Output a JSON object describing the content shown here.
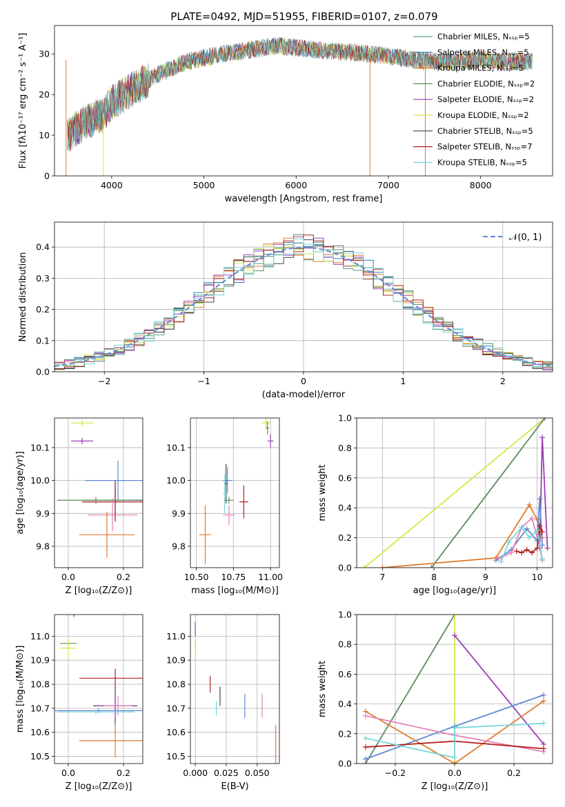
{
  "figure_title": "PLATE=0492, MJD=51955, FIBERID=0107, z=0.079",
  "colors": {
    "Chabrier MILES": "#5aa08a",
    "Salpeter MILES": "#2a7fa8",
    "Kroupa MILES": "#e07a2c",
    "Chabrier ELODIE": "#5c8a5c",
    "Salpeter ELODIE": "#9a3cb4",
    "Kroupa ELODIE": "#d6e64a",
    "Chabrier STELIB": "#444444",
    "Salpeter STELIB": "#b01f1f",
    "Kroupa STELIB": "#76d6da",
    "blue": "#5e87d6",
    "pink": "#e680b8",
    "normal_curve": "#6a8fd6"
  },
  "chart_data": [
    {
      "id": "spectrum",
      "type": "line",
      "xlabel": "wavelength [Angstrom, rest frame]",
      "ylabel": "Flux [fλ10⁻¹⁷ erg cm⁻² s⁻¹ A⁻¹]",
      "xlim": [
        3380,
        8780
      ],
      "ylim": [
        0,
        37
      ],
      "xticks": [
        4000,
        5000,
        6000,
        7000,
        8000
      ],
      "yticks": [
        0,
        10,
        20,
        30
      ],
      "legend_position": "right",
      "series": [
        {
          "name": "Chabrier MILES, Nₛₛₚ=5",
          "color": "#5aa08a"
        },
        {
          "name": "Salpeter MILES, Nₛₛₚ=5",
          "color": "#2a7fa8"
        },
        {
          "name": "Kroupa MILES, Nₛₛₚ=5",
          "color": "#e07a2c"
        },
        {
          "name": "Chabrier ELODIE, Nₛₛₚ=2",
          "color": "#5c8a5c"
        },
        {
          "name": "Salpeter ELODIE, Nₛₛₚ=2",
          "color": "#9a3cb4"
        },
        {
          "name": "Kroupa ELODIE, Nₛₛₚ=2",
          "color": "#d6e64a"
        },
        {
          "name": "Chabrier STELIB, Nₛₛₚ=5",
          "color": "#444444"
        },
        {
          "name": "Salpeter STELIB, Nₛₛₚ=7",
          "color": "#b01f1f"
        },
        {
          "name": "Kroupa STELIB, Nₛₛₚ=5",
          "color": "#76d6da"
        }
      ],
      "continuum": {
        "x": [
          3520,
          3700,
          3900,
          4000,
          4200,
          4500,
          4800,
          5000,
          5200,
          5500,
          5800,
          6000,
          6200,
          6500,
          6800,
          7000,
          7300,
          7600,
          8000,
          8400,
          8700
        ],
        "y": [
          10,
          13,
          15,
          18,
          21,
          25,
          28,
          29,
          30,
          31,
          32,
          31.5,
          31,
          30.5,
          30,
          29.5,
          28.5,
          28,
          28.5,
          28,
          28.5
        ]
      },
      "spikes": [
        {
          "x": 3505,
          "y_bottom": 0,
          "color": "#e07a2c"
        },
        {
          "x": 3910,
          "y_bottom": 0,
          "color": "#d6e64a"
        },
        {
          "x": 6800,
          "y_bottom": 0,
          "color": "#e07a2c"
        },
        {
          "x": 7400,
          "y_bottom": 0,
          "color": "#e07a2c"
        }
      ]
    },
    {
      "id": "residuals",
      "type": "histogram",
      "xlabel": "(data-model)/error",
      "ylabel": "Normed distribution",
      "xlim": [
        -2.5,
        2.5
      ],
      "ylim": [
        0,
        0.48
      ],
      "xticks": [
        -2,
        -1,
        0,
        1,
        2
      ],
      "yticks": [
        0.0,
        0.1,
        0.2,
        0.3,
        0.4
      ],
      "grid": true,
      "legend_position": "top-right",
      "curve_label": "𝒩(0, 1)"
    },
    {
      "id": "age_vs_Z",
      "type": "errorbar",
      "xlabel": "Z [log₁₀(Z/Z⊙)]",
      "ylabel": "age  [log₁₀(age/yr)]",
      "xlim": [
        -0.05,
        0.27
      ],
      "ylim": [
        9.735,
        10.19
      ],
      "xticks": [
        0.0,
        0.2
      ],
      "yticks": [
        9.8,
        9.9,
        10.0,
        10.1
      ],
      "grid": true,
      "points": [
        {
          "x": 0.05,
          "xerr": 0.04,
          "y": 10.175,
          "yerr": 0.01,
          "color": "#d6e64a"
        },
        {
          "x": 0.05,
          "xerr": 0.04,
          "y": 10.12,
          "yerr": 0.01,
          "color": "#9a3cb4"
        },
        {
          "x": 0.18,
          "xerr": 0.12,
          "y": 10.0,
          "yerr": 0.06,
          "color": "#5e87d6"
        },
        {
          "x": 0.17,
          "xerr": 0.12,
          "y": 9.94,
          "yerr": 0.06,
          "color": "#444444"
        },
        {
          "x": 0.17,
          "xerr": 0.12,
          "y": 9.935,
          "yerr": 0.06,
          "color": "#76d6da"
        },
        {
          "x": 0.17,
          "xerr": 0.12,
          "y": 9.935,
          "yerr": 0.06,
          "color": "#b01f1f"
        },
        {
          "x": 0.16,
          "xerr": 0.09,
          "y": 9.895,
          "yerr": 0.05,
          "color": "#e680b8"
        },
        {
          "x": 0.14,
          "xerr": 0.1,
          "y": 9.835,
          "yerr": 0.07,
          "color": "#e07a2c"
        },
        {
          "x": 0.1,
          "xerr": 0.14,
          "y": 9.94,
          "yerr": 0.01,
          "color": "#5c8a5c"
        }
      ]
    },
    {
      "id": "age_vs_mass",
      "type": "errorbar",
      "xlabel": "mass [log₁₀(M/M⊙)]",
      "ylabel": "",
      "xlim": [
        10.46,
        11.06
      ],
      "ylim": [
        9.735,
        10.19
      ],
      "xticks": [
        10.5,
        10.75,
        11.0
      ],
      "yticks": [
        9.8,
        9.9,
        10.0,
        10.1
      ],
      "grid": true,
      "points": [
        {
          "x": 10.97,
          "xerr": 0.03,
          "y": 10.175,
          "yerr": 0.02,
          "color": "#d6e64a"
        },
        {
          "x": 11.0,
          "xerr": 0.02,
          "y": 10.12,
          "yerr": 0.02,
          "color": "#9a3cb4"
        },
        {
          "x": 10.98,
          "xerr": 0.01,
          "y": 10.16,
          "yerr": 0.02,
          "color": "#5c8a5c"
        },
        {
          "x": 10.71,
          "xerr": 0.03,
          "y": 10.0,
          "yerr": 0.04,
          "color": "#5e87d6"
        },
        {
          "x": 10.7,
          "xerr": 0.01,
          "y": 9.99,
          "yerr": 0.06,
          "color": "#444444"
        },
        {
          "x": 10.69,
          "xerr": 0.01,
          "y": 9.96,
          "yerr": 0.06,
          "color": "#76d6da"
        },
        {
          "x": 10.82,
          "xerr": 0.03,
          "y": 9.935,
          "yerr": 0.05,
          "color": "#b01f1f"
        },
        {
          "x": 10.72,
          "xerr": 0.04,
          "y": 9.895,
          "yerr": 0.03,
          "color": "#e680b8"
        },
        {
          "x": 10.56,
          "xerr": 0.04,
          "y": 9.835,
          "yerr": 0.09,
          "color": "#e07a2c"
        },
        {
          "x": 10.72,
          "xerr": 0.03,
          "y": 9.94,
          "yerr": 0.01,
          "color": "#5c8a5c"
        }
      ]
    },
    {
      "id": "weight_vs_age",
      "type": "line",
      "xlabel": "age  [log₁₀(age/yr)]",
      "ylabel": "mass weight",
      "xlim": [
        6.5,
        10.3
      ],
      "ylim": [
        0,
        1.0
      ],
      "xticks": [
        7,
        8,
        9,
        10
      ],
      "yticks": [
        0.0,
        0.2,
        0.4,
        0.6,
        0.8,
        1.0
      ],
      "grid": true,
      "series": [
        {
          "color": "#d6e64a",
          "x": [
            6.65,
            10.15
          ],
          "y": [
            0.0,
            1.0
          ]
        },
        {
          "color": "#5c8a5c",
          "x": [
            7.95,
            10.15
          ],
          "y": [
            0.0,
            1.0
          ]
        },
        {
          "color": "#9a3cb4",
          "x": [
            10.05,
            10.1,
            10.2
          ],
          "y": [
            0.13,
            0.87,
            0.13
          ]
        },
        {
          "color": "#e07a2c",
          "x": [
            7.0,
            9.2,
            9.85,
            10.0,
            10.1
          ],
          "y": [
            0.0,
            0.065,
            0.42,
            0.32,
            0.2
          ]
        },
        {
          "color": "#5e87d6",
          "x": [
            9.2,
            9.5,
            9.8,
            10.0,
            10.05,
            10.1
          ],
          "y": [
            0.05,
            0.12,
            0.26,
            0.18,
            0.46,
            0.15
          ]
        },
        {
          "color": "#e680b8",
          "x": [
            9.25,
            9.5,
            9.7,
            9.9,
            10.05,
            10.1
          ],
          "y": [
            0.06,
            0.1,
            0.27,
            0.33,
            0.14,
            0.05
          ]
        },
        {
          "color": "#b01f1f",
          "x": [
            9.6,
            9.7,
            9.8,
            9.9,
            10.0,
            10.05,
            10.1
          ],
          "y": [
            0.11,
            0.1,
            0.12,
            0.1,
            0.13,
            0.28,
            0.24
          ]
        },
        {
          "color": "#76d6da",
          "x": [
            9.3,
            9.45,
            9.7,
            9.85,
            10.0,
            10.1
          ],
          "y": [
            0.04,
            0.17,
            0.27,
            0.2,
            0.25,
            0.06
          ]
        }
      ]
    },
    {
      "id": "mass_vs_Z",
      "type": "errorbar",
      "xlabel": "Z [log₁₀(Z/Z⊙)]",
      "ylabel": "mass [log₁₀(M/M⊙)]",
      "xlim": [
        -0.05,
        0.27
      ],
      "ylim": [
        10.47,
        11.09
      ],
      "xticks": [
        0.0,
        0.2
      ],
      "yticks": [
        10.5,
        10.6,
        10.7,
        10.8,
        10.9,
        11.0
      ],
      "grid": true,
      "points": [
        {
          "x": 0.02,
          "xerr": 0.04,
          "y": 11.11,
          "yerr": 0.03,
          "color": "#9a3cb4"
        },
        {
          "x": 0.0,
          "xerr": 0.03,
          "y": 10.97,
          "yerr": 0.01,
          "color": "#5c8a5c"
        },
        {
          "x": 0.0,
          "xerr": 0.03,
          "y": 10.95,
          "yerr": 0.04,
          "color": "#d6e64a"
        },
        {
          "x": 0.17,
          "xerr": 0.13,
          "y": 10.825,
          "yerr": 0.04,
          "color": "#b01f1f"
        },
        {
          "x": 0.17,
          "xerr": 0.08,
          "y": 10.71,
          "yerr": 0.08,
          "color": "#444444"
        },
        {
          "x": 0.17,
          "xerr": 0.07,
          "y": 10.71,
          "yerr": 0.05,
          "color": "#9a3cb4"
        },
        {
          "x": 0.18,
          "xerr": 0.05,
          "y": 10.71,
          "yerr": 0.04,
          "color": "#e680b8"
        },
        {
          "x": 0.11,
          "xerr": 0.16,
          "y": 10.69,
          "yerr": 0.01,
          "color": "#5e87d6"
        },
        {
          "x": 0.1,
          "xerr": 0.14,
          "y": 10.685,
          "yerr": 0.01,
          "color": "#76d6da"
        },
        {
          "x": 0.17,
          "xerr": 0.13,
          "y": 10.565,
          "yerr": 0.07,
          "color": "#e07a2c"
        }
      ]
    },
    {
      "id": "mass_vs_EBV",
      "type": "errorbar",
      "xlabel": "E(B-V)",
      "ylabel": "",
      "xlim": [
        -0.004,
        0.068
      ],
      "ylim": [
        10.47,
        11.09
      ],
      "xticks": [
        0.0,
        0.025,
        0.05
      ],
      "yticks": [
        10.5,
        10.6,
        10.7,
        10.8,
        10.9,
        11.0
      ],
      "grid": true,
      "points": [
        {
          "x": 0.0,
          "y": 11.03,
          "yerr": 0.03,
          "color": "#9a3cb4"
        },
        {
          "x": 0.0,
          "y": 10.96,
          "yerr": 0.02,
          "color": "#5c8a5c"
        },
        {
          "x": 0.0,
          "y": 10.94,
          "yerr": 0.04,
          "color": "#d6e64a"
        },
        {
          "x": 0.012,
          "y": 10.8,
          "yerr": 0.035,
          "color": "#b01f1f"
        },
        {
          "x": 0.02,
          "y": 10.75,
          "yerr": 0.04,
          "color": "#444444"
        },
        {
          "x": 0.017,
          "y": 10.7,
          "yerr": 0.03,
          "color": "#76d6da"
        },
        {
          "x": 0.04,
          "y": 10.71,
          "yerr": 0.05,
          "color": "#5e87d6"
        },
        {
          "x": 0.054,
          "y": 10.71,
          "yerr": 0.05,
          "color": "#e680b8"
        },
        {
          "x": 0.065,
          "y": 10.55,
          "yerr": 0.08,
          "color": "#e07a2c"
        }
      ]
    },
    {
      "id": "weight_vs_Z",
      "type": "line",
      "xlabel": "Z [log₁₀(Z/Z⊙)]",
      "ylabel": "mass weight",
      "xlim": [
        -0.33,
        0.33
      ],
      "ylim": [
        0,
        1.0
      ],
      "xticks": [
        -0.2,
        0.0,
        0.2
      ],
      "yticks": [
        0.0,
        0.2,
        0.4,
        0.6,
        0.8,
        1.0
      ],
      "grid": true,
      "series": [
        {
          "color": "#5c8a5c",
          "x": [
            -0.3,
            0.0
          ],
          "y": [
            0.0,
            1.0
          ]
        },
        {
          "color": "#d6e64a",
          "x": [
            0.0,
            0.0
          ],
          "y": [
            1.0,
            0.0
          ]
        },
        {
          "color": "#9a3cb4",
          "x": [
            0.0,
            0.3
          ],
          "y": [
            0.86,
            0.13
          ]
        },
        {
          "color": "#e07a2c",
          "x": [
            -0.3,
            0.0,
            0.3
          ],
          "y": [
            0.35,
            0.0,
            0.42
          ]
        },
        {
          "color": "#5e87d6",
          "x": [
            -0.3,
            0.0,
            0.3
          ],
          "y": [
            0.03,
            0.25,
            0.46
          ]
        },
        {
          "color": "#e680b8",
          "x": [
            -0.3,
            0.0,
            0.3
          ],
          "y": [
            0.32,
            0.19,
            0.08
          ]
        },
        {
          "color": "#b01f1f",
          "x": [
            -0.3,
            0.0,
            0.3
          ],
          "y": [
            0.11,
            0.15,
            0.1
          ]
        },
        {
          "color": "#76d6da",
          "x": [
            -0.3,
            0.0,
            0.0,
            0.3
          ],
          "y": [
            0.17,
            0.04,
            0.24,
            0.27
          ]
        }
      ]
    }
  ]
}
